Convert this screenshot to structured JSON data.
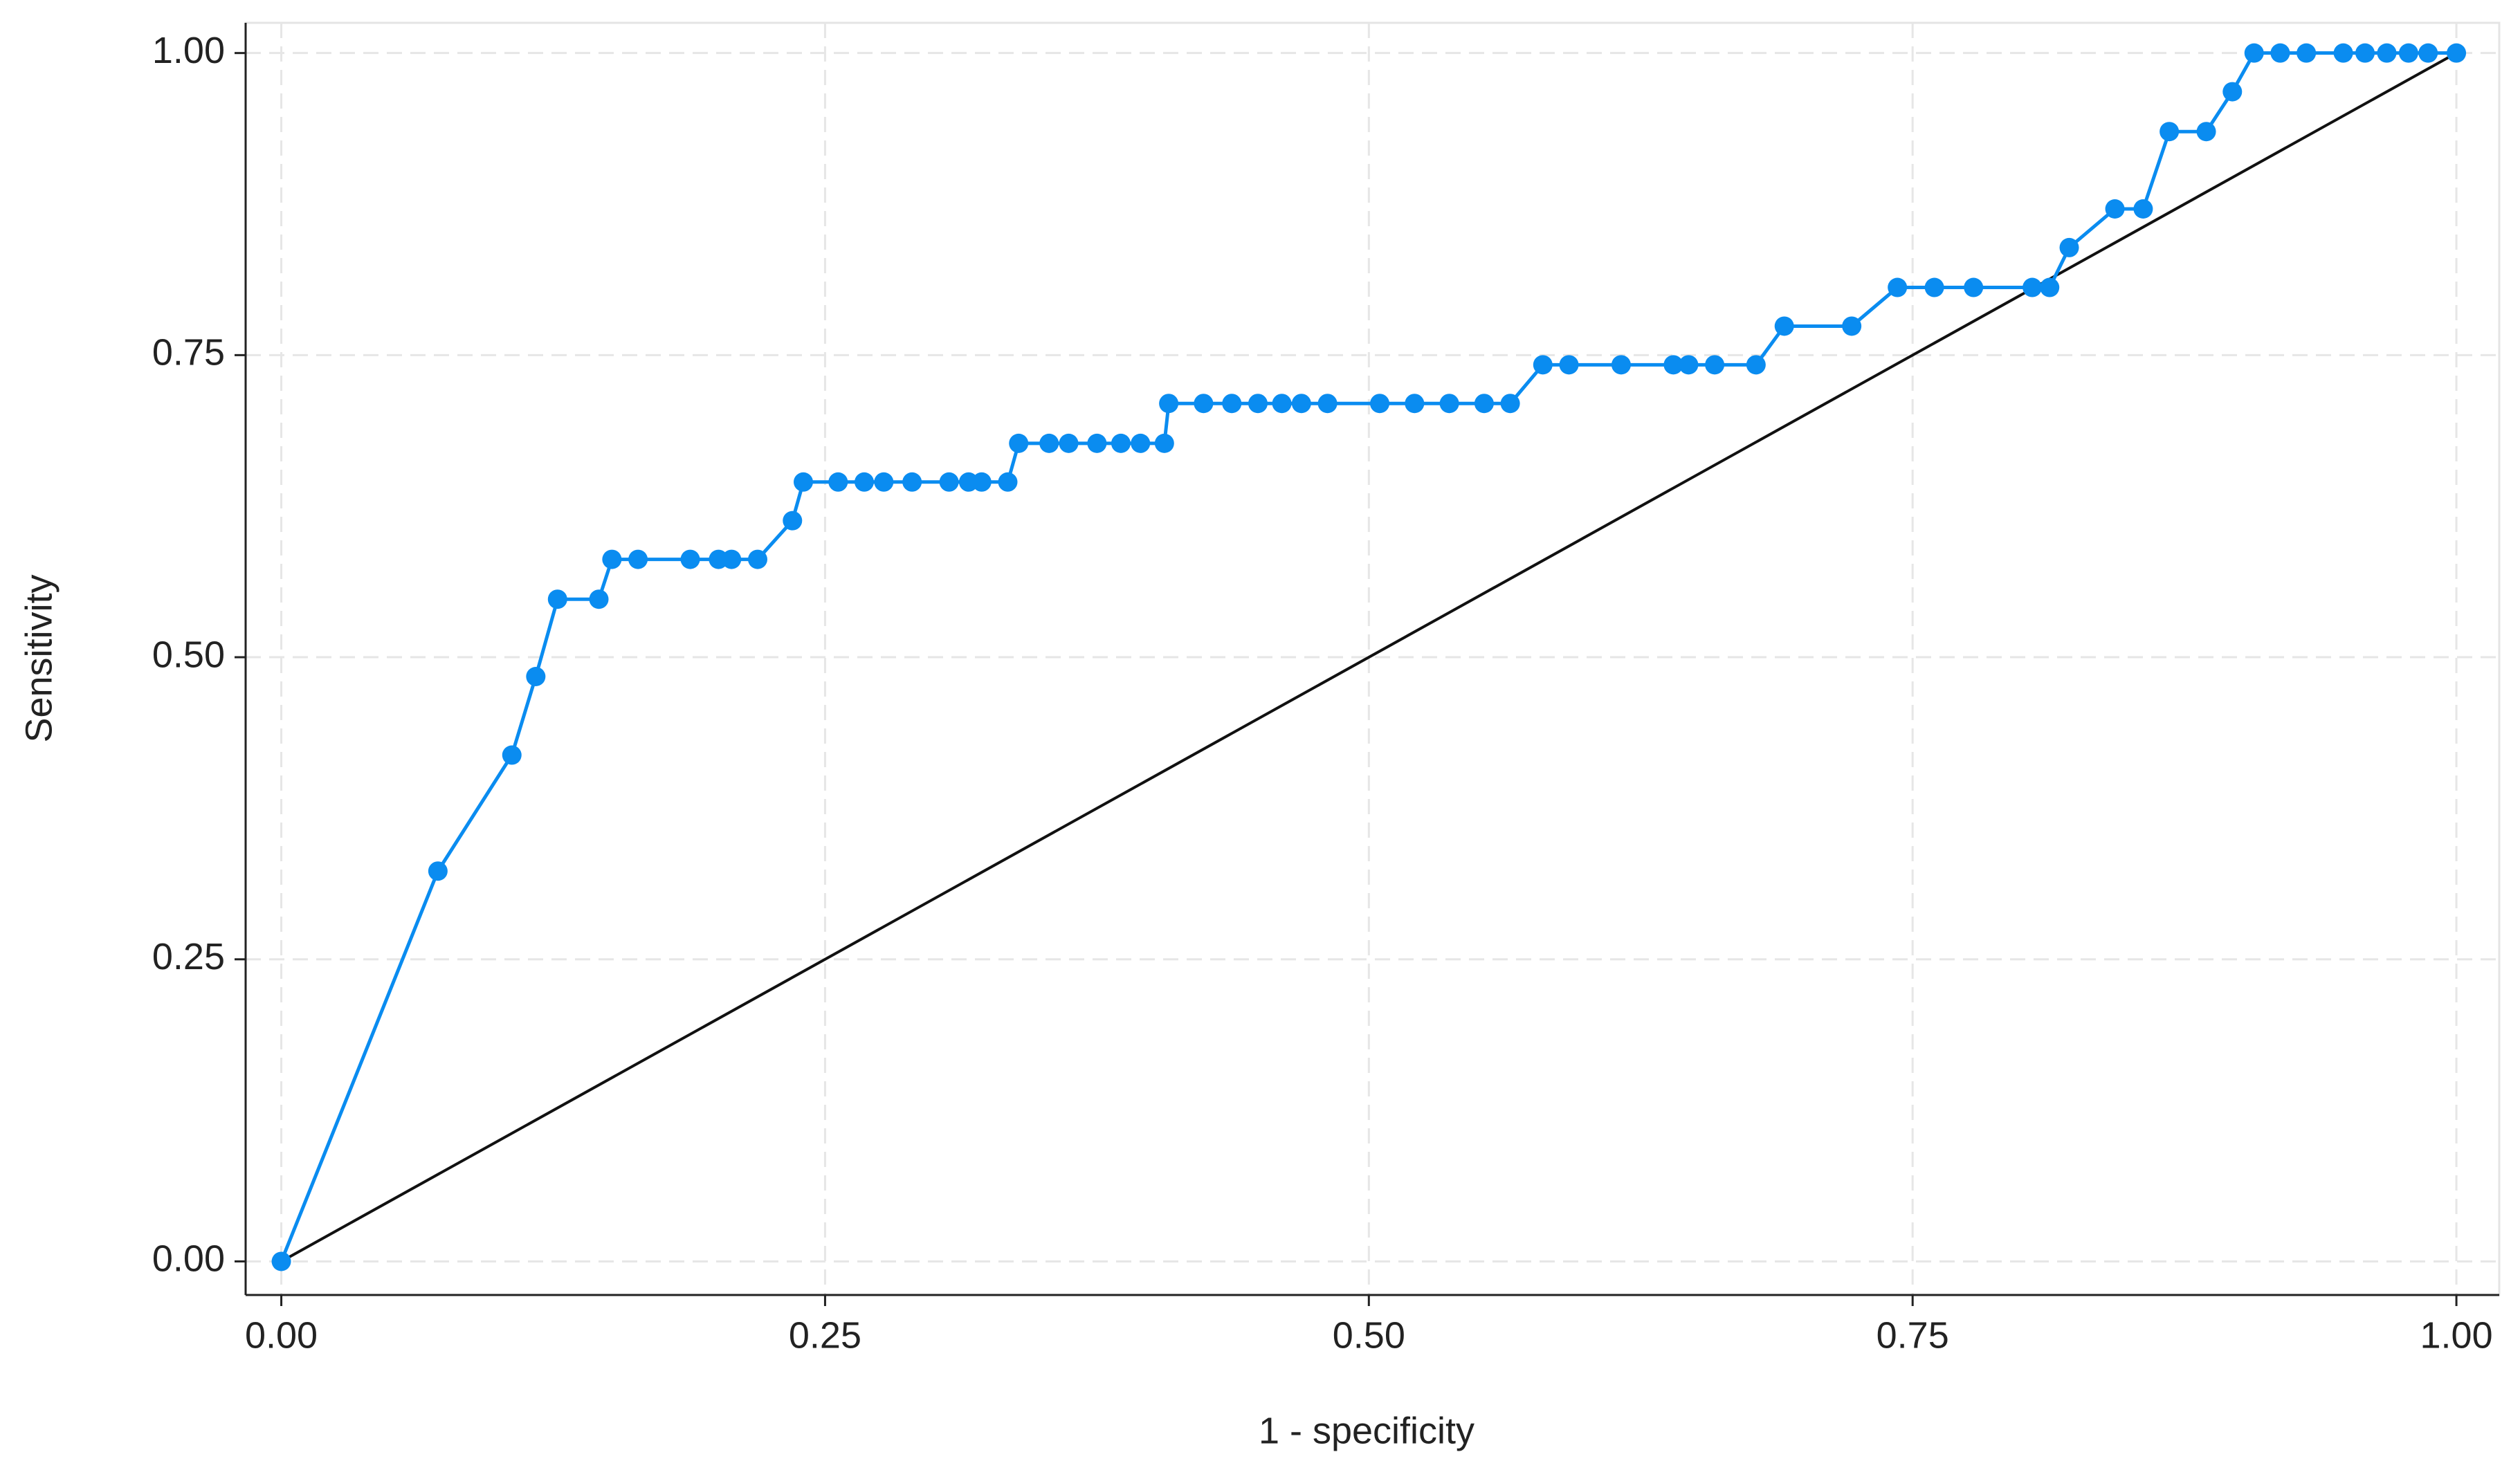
{
  "chart_data": {
    "type": "line",
    "x_label": "1 - specificity",
    "y_label": "Sensitivity",
    "x": [
      0,
      0.072,
      0.106,
      0.117,
      0.127,
      0.146,
      0.152,
      0.164,
      0.188,
      0.201,
      0.207,
      0.219,
      0.235,
      0.24,
      0.256,
      0.268,
      0.277,
      0.29,
      0.307,
      0.316,
      0.322,
      0.334,
      0.339,
      0.353,
      0.362,
      0.375,
      0.386,
      0.395,
      0.406,
      0.408,
      0.424,
      0.437,
      0.449,
      0.46,
      0.469,
      0.481,
      0.505,
      0.521,
      0.537,
      0.553,
      0.565,
      0.58,
      0.592,
      0.616,
      0.64,
      0.647,
      0.659,
      0.678,
      0.691,
      0.722,
      0.743,
      0.76,
      0.778,
      0.805,
      0.813,
      0.822,
      0.843,
      0.856,
      0.868,
      0.885,
      0.897,
      0.907,
      0.919,
      0.931,
      0.948,
      0.958,
      0.968,
      0.978,
      0.987,
      1
    ],
    "series": [
      {
        "color": "#0a8cf0",
        "values": [
          0,
          0.323,
          0.419,
          0.484,
          0.548,
          0.548,
          0.581,
          0.581,
          0.581,
          0.581,
          0.581,
          0.581,
          0.613,
          0.645,
          0.645,
          0.645,
          0.645,
          0.645,
          0.645,
          0.645,
          0.645,
          0.645,
          0.677,
          0.677,
          0.677,
          0.677,
          0.677,
          0.677,
          0.677,
          0.71,
          0.71,
          0.71,
          0.71,
          0.71,
          0.71,
          0.71,
          0.71,
          0.71,
          0.71,
          0.71,
          0.71,
          0.742,
          0.742,
          0.742,
          0.742,
          0.742,
          0.742,
          0.742,
          0.774,
          0.774,
          0.806,
          0.806,
          0.806,
          0.806,
          0.806,
          0.839,
          0.871,
          0.871,
          0.935,
          0.935,
          0.968,
          1,
          1,
          1,
          1,
          1,
          1,
          1,
          1,
          1
        ]
      }
    ],
    "xlim": [
      -0.0164,
      1.0197
    ],
    "ylim": [
      -0.0278,
      1.025
    ],
    "xticks": [
      {
        "value": 0,
        "label": "0.00"
      },
      {
        "value": 0.25,
        "label": "0.25"
      },
      {
        "value": 0.5,
        "label": "0.50"
      },
      {
        "value": 0.75,
        "label": "0.75"
      },
      {
        "value": 1,
        "label": "1.00"
      }
    ],
    "yticks": [
      {
        "value": 0,
        "label": "0.00"
      },
      {
        "value": 0.25,
        "label": "0.25"
      },
      {
        "value": 0.5,
        "label": "0.50"
      },
      {
        "value": 0.75,
        "label": "0.75"
      },
      {
        "value": 1,
        "label": "1.00"
      }
    ],
    "grid": true,
    "reference_line_color": "#111111"
  }
}
